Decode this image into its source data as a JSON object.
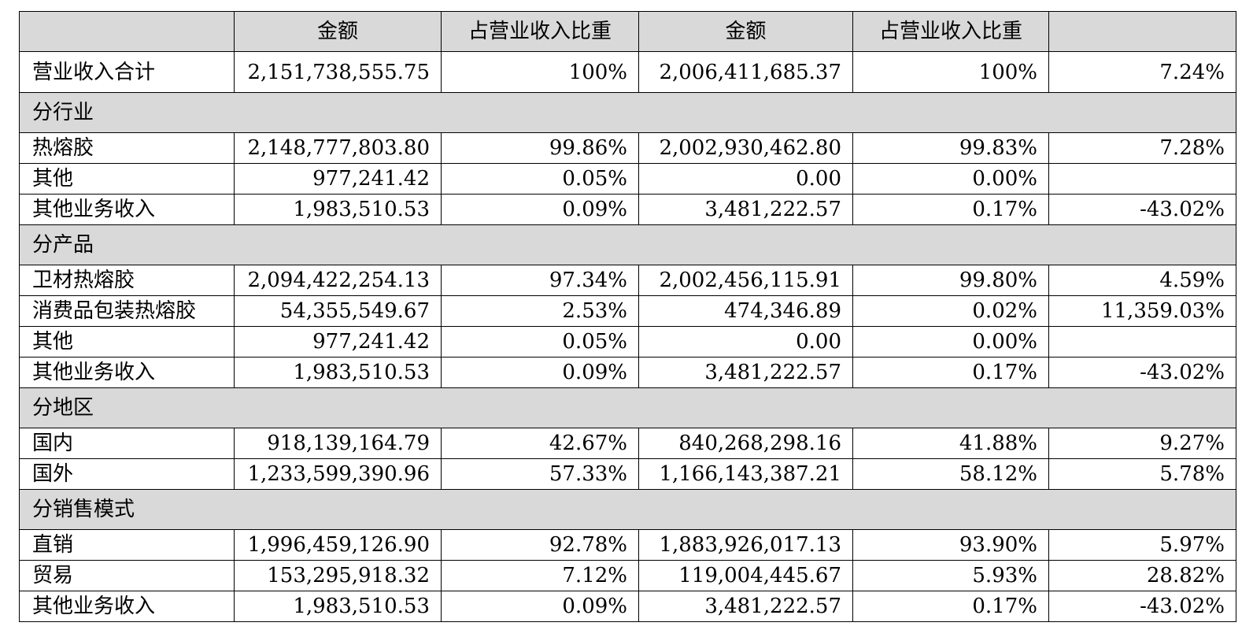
{
  "header": {
    "col0": "",
    "col1": "金额",
    "col2": "占营业收入比重",
    "col3": "金额",
    "col4": "占营业收入比重",
    "col5": ""
  },
  "total": {
    "label": "营业收入合计",
    "amount_current": "2,151,738,555.75",
    "share_current": "100%",
    "amount_prior": "2,006,411,685.37",
    "share_prior": "100%",
    "change": "7.24%"
  },
  "sections": [
    {
      "title": "分行业",
      "rows": [
        {
          "label": "热熔胶",
          "amount_current": "2,148,777,803.80",
          "share_current": "99.86%",
          "amount_prior": "2,002,930,462.80",
          "share_prior": "99.83%",
          "change": "7.28%"
        },
        {
          "label": "其他",
          "amount_current": "977,241.42",
          "share_current": "0.05%",
          "amount_prior": "0.00",
          "share_prior": "0.00%",
          "change": ""
        },
        {
          "label": "其他业务收入",
          "amount_current": "1,983,510.53",
          "share_current": "0.09%",
          "amount_prior": "3,481,222.57",
          "share_prior": "0.17%",
          "change": "-43.02%"
        }
      ]
    },
    {
      "title": "分产品",
      "rows": [
        {
          "label": "卫材热熔胶",
          "amount_current": "2,094,422,254.13",
          "share_current": "97.34%",
          "amount_prior": "2,002,456,115.91",
          "share_prior": "99.80%",
          "change": "4.59%"
        },
        {
          "label": "消费品包装热熔胶",
          "amount_current": "54,355,549.67",
          "share_current": "2.53%",
          "amount_prior": "474,346.89",
          "share_prior": "0.02%",
          "change": "11,359.03%"
        },
        {
          "label": "其他",
          "amount_current": "977,241.42",
          "share_current": "0.05%",
          "amount_prior": "0.00",
          "share_prior": "0.00%",
          "change": ""
        },
        {
          "label": "其他业务收入",
          "amount_current": "1,983,510.53",
          "share_current": "0.09%",
          "amount_prior": "3,481,222.57",
          "share_prior": "0.17%",
          "change": "-43.02%"
        }
      ]
    },
    {
      "title": "分地区",
      "rows": [
        {
          "label": "国内",
          "amount_current": "918,139,164.79",
          "share_current": "42.67%",
          "amount_prior": "840,268,298.16",
          "share_prior": "41.88%",
          "change": "9.27%"
        },
        {
          "label": "国外",
          "amount_current": "1,233,599,390.96",
          "share_current": "57.33%",
          "amount_prior": "1,166,143,387.21",
          "share_prior": "58.12%",
          "change": "5.78%"
        }
      ]
    },
    {
      "title": "分销售模式",
      "rows": [
        {
          "label": "直销",
          "amount_current": "1,996,459,126.90",
          "share_current": "92.78%",
          "amount_prior": "1,883,926,017.13",
          "share_prior": "93.90%",
          "change": "5.97%"
        },
        {
          "label": "贸易",
          "amount_current": "153,295,918.32",
          "share_current": "7.12%",
          "amount_prior": "119,004,445.67",
          "share_prior": "5.93%",
          "change": "28.82%"
        },
        {
          "label": "其他业务收入",
          "amount_current": "1,983,510.53",
          "share_current": "0.09%",
          "amount_prior": "3,481,222.57",
          "share_prior": "0.17%",
          "change": "-43.02%"
        }
      ]
    }
  ]
}
